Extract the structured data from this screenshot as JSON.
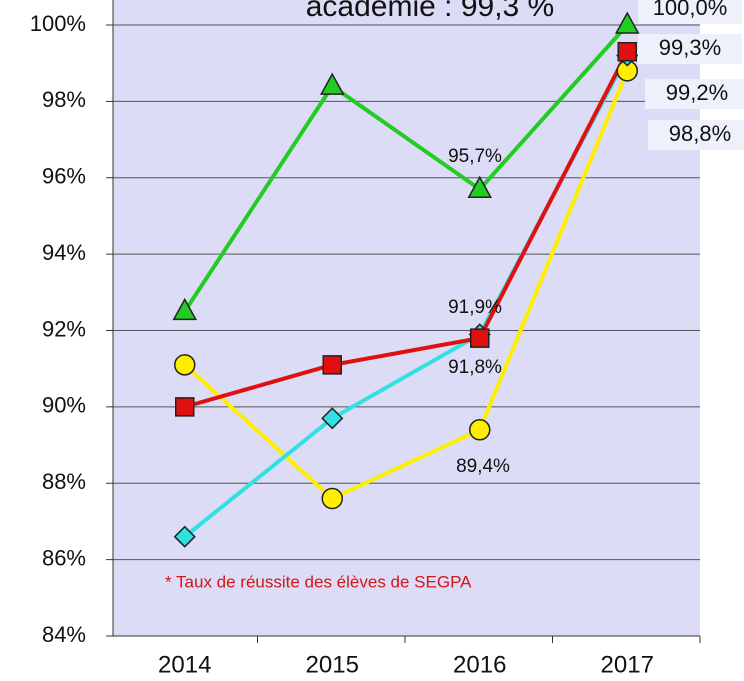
{
  "chart_data": {
    "type": "line",
    "title": "académie : 99,3 %",
    "categories": [
      "2014",
      "2015",
      "2016",
      "2017"
    ],
    "series": [
      {
        "name": "yellow-circle",
        "color": "#ffee00",
        "marker": "circle",
        "values": [
          91.1,
          87.6,
          89.4,
          98.8
        ],
        "value_labels": [
          null,
          null,
          "89,4%",
          "98,8%"
        ]
      },
      {
        "name": "cyan-diamond",
        "color": "#33e0e0",
        "marker": "diamond",
        "values": [
          86.6,
          89.7,
          91.9,
          99.2
        ],
        "value_labels": [
          null,
          null,
          "91,9%",
          "99,2%"
        ]
      },
      {
        "name": "red-square",
        "color": "#e01010",
        "marker": "square",
        "values": [
          90.0,
          91.1,
          91.8,
          99.3
        ],
        "value_labels": [
          null,
          null,
          "91,8%",
          "99,3%"
        ]
      },
      {
        "name": "green-triangle",
        "color": "#22cc22",
        "marker": "triangle",
        "values": [
          92.5,
          98.4,
          95.7,
          100.0
        ],
        "value_labels": [
          null,
          null,
          "95,7%",
          "100,0%"
        ]
      }
    ],
    "ylim": [
      84,
      100
    ],
    "yticks": [
      {
        "value": 84,
        "label": "84%"
      },
      {
        "value": 86,
        "label": "86%"
      },
      {
        "value": 88,
        "label": "88%"
      },
      {
        "value": 90,
        "label": "90%"
      },
      {
        "value": 92,
        "label": "92%"
      },
      {
        "value": 94,
        "label": "94%"
      },
      {
        "value": 96,
        "label": "96%"
      },
      {
        "value": 98,
        "label": "98%"
      },
      {
        "value": 100,
        "label": "100%"
      }
    ],
    "grid": true,
    "annotation": "* Taux de réussite des élèves de SEGPA"
  }
}
